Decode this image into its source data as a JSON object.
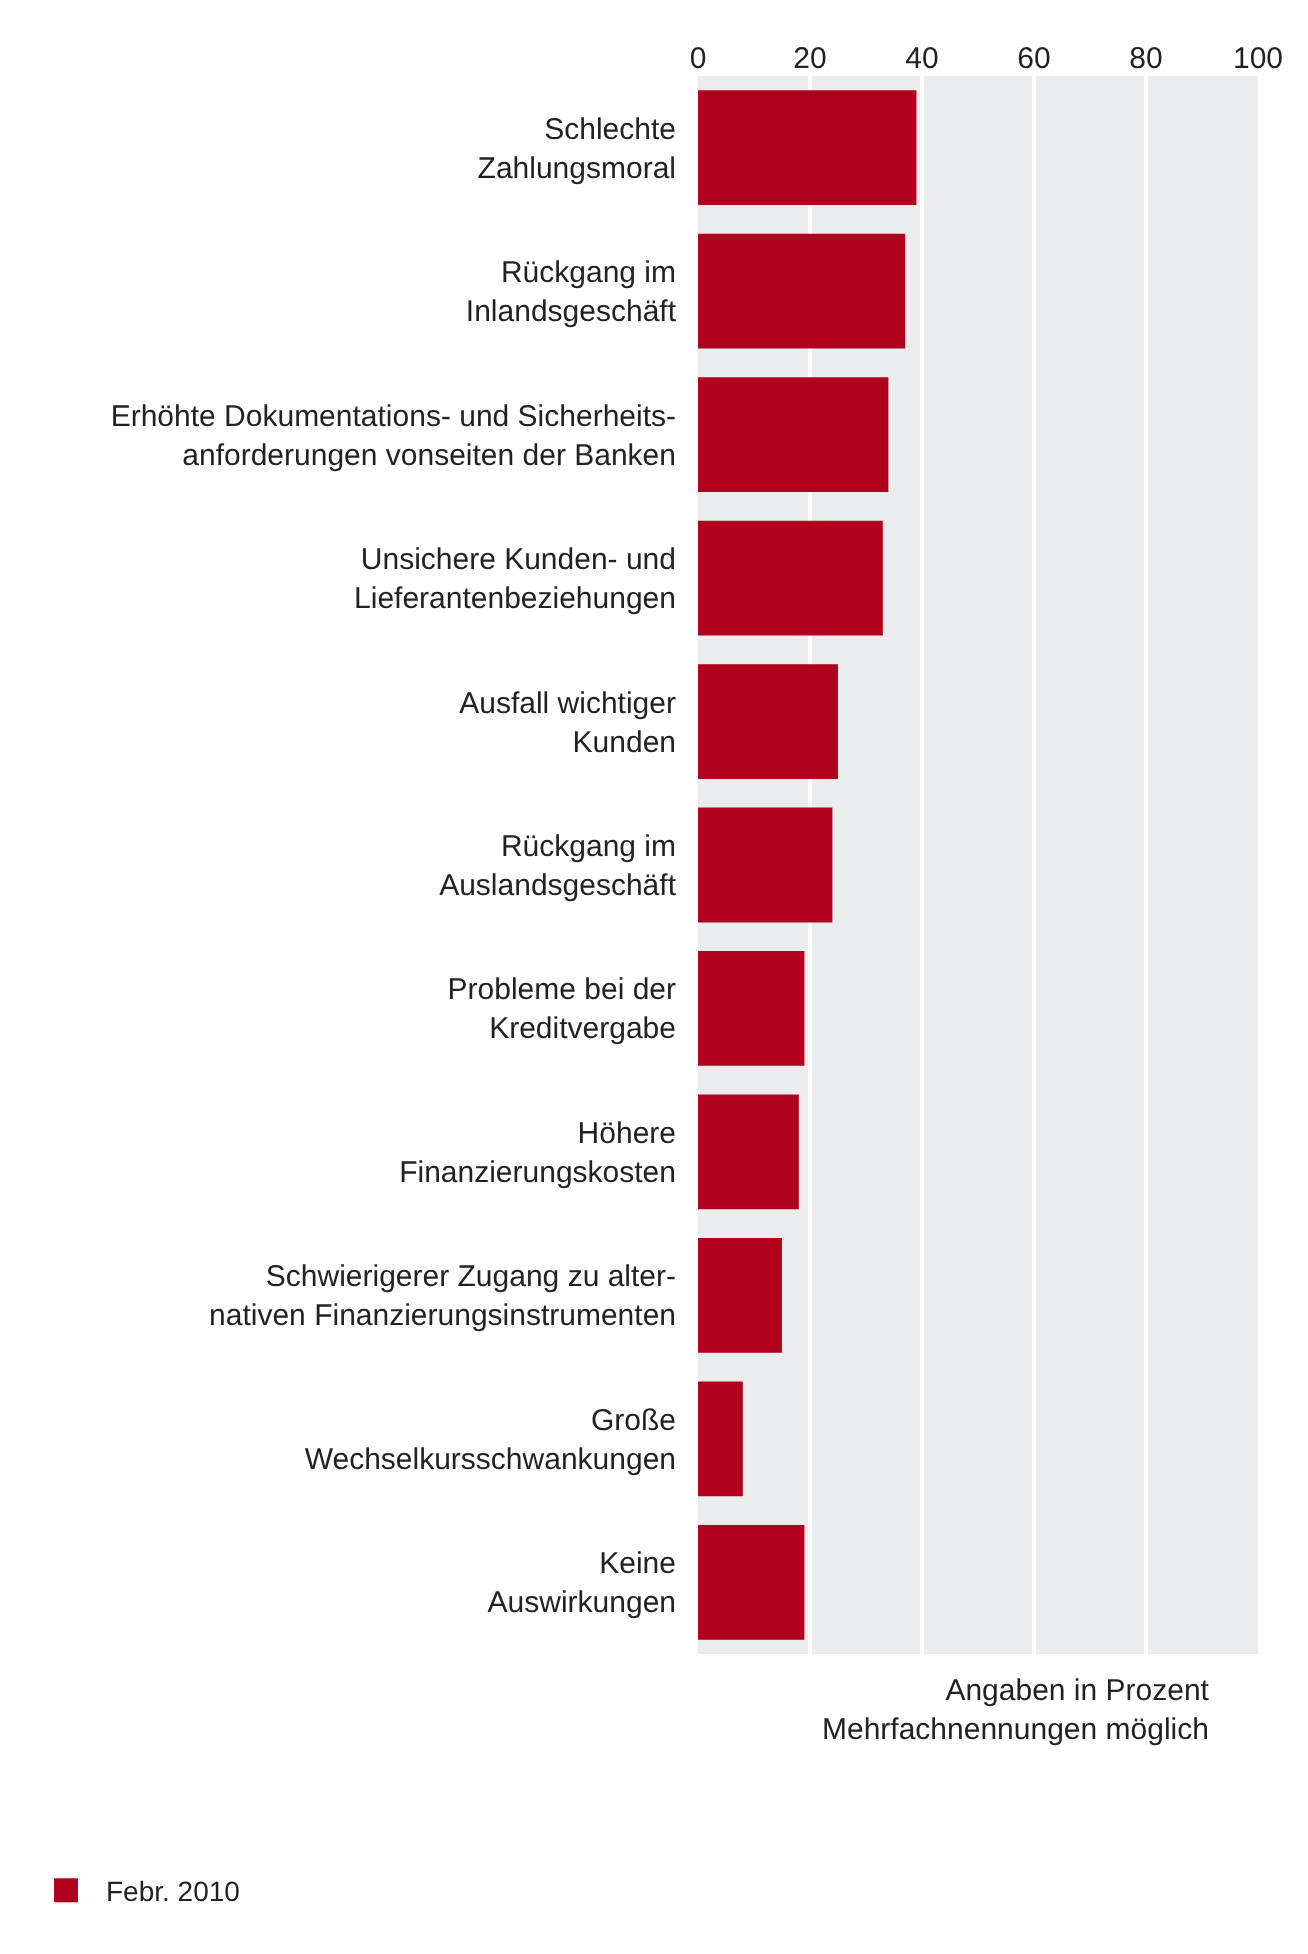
{
  "chart_data": {
    "type": "bar",
    "orientation": "horizontal",
    "categories": [
      "Schlechte\nZahlungsmoral",
      "Rückgang im\nInlandsgeschäft",
      "Erhöhte Dokumentations- und Sicherheits-\nanforderungen vonseiten der Banken",
      "Unsichere Kunden- und\nLieferantenbeziehungen",
      "Ausfall wichtiger\nKunden",
      "Rückgang im\nAuslandsgeschäft",
      "Probleme bei der\nKreditvergabe",
      "Höhere\nFinanzierungskosten",
      "Schwierigerer Zugang zu alter-\nnativen Finanzierungsinstrumenten",
      "Große\nWechselkursschwankungen",
      "Keine\nAuswirkungen"
    ],
    "series": [
      {
        "name": "Febr. 2010",
        "color": "#b0001e",
        "values": [
          39,
          37,
          34,
          33,
          25,
          24,
          19,
          18,
          15,
          8,
          19
        ]
      }
    ],
    "xlim": [
      0,
      100
    ],
    "xticks": [
      0,
      20,
      40,
      60,
      80,
      100
    ],
    "grid": "x",
    "legend": "bottom left",
    "annotations": [
      "Angaben in Prozent\nMehrfachnennungen möglich"
    ]
  }
}
